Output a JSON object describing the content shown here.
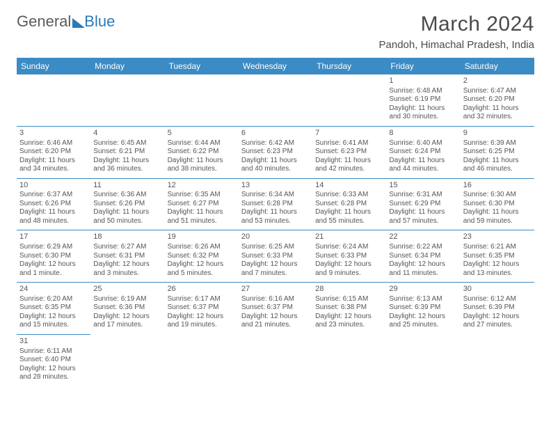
{
  "logo": {
    "general": "General",
    "blue": "Blue"
  },
  "title": "March 2024",
  "location": "Pandoh, Himachal Pradesh, India",
  "columns": [
    "Sunday",
    "Monday",
    "Tuesday",
    "Wednesday",
    "Thursday",
    "Friday",
    "Saturday"
  ],
  "styling": {
    "header_bg": "#3b8bc4",
    "header_fg": "#ffffff",
    "border_color": "#3b8bc4",
    "body_text": "#555555",
    "title_color": "#4a4a4a",
    "logo_blue": "#2a7ab8",
    "page_bg": "#ffffff",
    "month_fontsize": 30,
    "location_fontsize": 15,
    "th_fontsize": 12,
    "cell_fontsize": 10,
    "daynum_fontsize": 11
  },
  "weeks": [
    [
      null,
      null,
      null,
      null,
      null,
      {
        "n": "1",
        "sunrise": "Sunrise: 6:48 AM",
        "sunset": "Sunset: 6:19 PM",
        "day1": "Daylight: 11 hours",
        "day2": "and 30 minutes."
      },
      {
        "n": "2",
        "sunrise": "Sunrise: 6:47 AM",
        "sunset": "Sunset: 6:20 PM",
        "day1": "Daylight: 11 hours",
        "day2": "and 32 minutes."
      }
    ],
    [
      {
        "n": "3",
        "sunrise": "Sunrise: 6:46 AM",
        "sunset": "Sunset: 6:20 PM",
        "day1": "Daylight: 11 hours",
        "day2": "and 34 minutes."
      },
      {
        "n": "4",
        "sunrise": "Sunrise: 6:45 AM",
        "sunset": "Sunset: 6:21 PM",
        "day1": "Daylight: 11 hours",
        "day2": "and 36 minutes."
      },
      {
        "n": "5",
        "sunrise": "Sunrise: 6:44 AM",
        "sunset": "Sunset: 6:22 PM",
        "day1": "Daylight: 11 hours",
        "day2": "and 38 minutes."
      },
      {
        "n": "6",
        "sunrise": "Sunrise: 6:42 AM",
        "sunset": "Sunset: 6:23 PM",
        "day1": "Daylight: 11 hours",
        "day2": "and 40 minutes."
      },
      {
        "n": "7",
        "sunrise": "Sunrise: 6:41 AM",
        "sunset": "Sunset: 6:23 PM",
        "day1": "Daylight: 11 hours",
        "day2": "and 42 minutes."
      },
      {
        "n": "8",
        "sunrise": "Sunrise: 6:40 AM",
        "sunset": "Sunset: 6:24 PM",
        "day1": "Daylight: 11 hours",
        "day2": "and 44 minutes."
      },
      {
        "n": "9",
        "sunrise": "Sunrise: 6:39 AM",
        "sunset": "Sunset: 6:25 PM",
        "day1": "Daylight: 11 hours",
        "day2": "and 46 minutes."
      }
    ],
    [
      {
        "n": "10",
        "sunrise": "Sunrise: 6:37 AM",
        "sunset": "Sunset: 6:26 PM",
        "day1": "Daylight: 11 hours",
        "day2": "and 48 minutes."
      },
      {
        "n": "11",
        "sunrise": "Sunrise: 6:36 AM",
        "sunset": "Sunset: 6:26 PM",
        "day1": "Daylight: 11 hours",
        "day2": "and 50 minutes."
      },
      {
        "n": "12",
        "sunrise": "Sunrise: 6:35 AM",
        "sunset": "Sunset: 6:27 PM",
        "day1": "Daylight: 11 hours",
        "day2": "and 51 minutes."
      },
      {
        "n": "13",
        "sunrise": "Sunrise: 6:34 AM",
        "sunset": "Sunset: 6:28 PM",
        "day1": "Daylight: 11 hours",
        "day2": "and 53 minutes."
      },
      {
        "n": "14",
        "sunrise": "Sunrise: 6:33 AM",
        "sunset": "Sunset: 6:28 PM",
        "day1": "Daylight: 11 hours",
        "day2": "and 55 minutes."
      },
      {
        "n": "15",
        "sunrise": "Sunrise: 6:31 AM",
        "sunset": "Sunset: 6:29 PM",
        "day1": "Daylight: 11 hours",
        "day2": "and 57 minutes."
      },
      {
        "n": "16",
        "sunrise": "Sunrise: 6:30 AM",
        "sunset": "Sunset: 6:30 PM",
        "day1": "Daylight: 11 hours",
        "day2": "and 59 minutes."
      }
    ],
    [
      {
        "n": "17",
        "sunrise": "Sunrise: 6:29 AM",
        "sunset": "Sunset: 6:30 PM",
        "day1": "Daylight: 12 hours",
        "day2": "and 1 minute."
      },
      {
        "n": "18",
        "sunrise": "Sunrise: 6:27 AM",
        "sunset": "Sunset: 6:31 PM",
        "day1": "Daylight: 12 hours",
        "day2": "and 3 minutes."
      },
      {
        "n": "19",
        "sunrise": "Sunrise: 6:26 AM",
        "sunset": "Sunset: 6:32 PM",
        "day1": "Daylight: 12 hours",
        "day2": "and 5 minutes."
      },
      {
        "n": "20",
        "sunrise": "Sunrise: 6:25 AM",
        "sunset": "Sunset: 6:33 PM",
        "day1": "Daylight: 12 hours",
        "day2": "and 7 minutes."
      },
      {
        "n": "21",
        "sunrise": "Sunrise: 6:24 AM",
        "sunset": "Sunset: 6:33 PM",
        "day1": "Daylight: 12 hours",
        "day2": "and 9 minutes."
      },
      {
        "n": "22",
        "sunrise": "Sunrise: 6:22 AM",
        "sunset": "Sunset: 6:34 PM",
        "day1": "Daylight: 12 hours",
        "day2": "and 11 minutes."
      },
      {
        "n": "23",
        "sunrise": "Sunrise: 6:21 AM",
        "sunset": "Sunset: 6:35 PM",
        "day1": "Daylight: 12 hours",
        "day2": "and 13 minutes."
      }
    ],
    [
      {
        "n": "24",
        "sunrise": "Sunrise: 6:20 AM",
        "sunset": "Sunset: 6:35 PM",
        "day1": "Daylight: 12 hours",
        "day2": "and 15 minutes."
      },
      {
        "n": "25",
        "sunrise": "Sunrise: 6:19 AM",
        "sunset": "Sunset: 6:36 PM",
        "day1": "Daylight: 12 hours",
        "day2": "and 17 minutes."
      },
      {
        "n": "26",
        "sunrise": "Sunrise: 6:17 AM",
        "sunset": "Sunset: 6:37 PM",
        "day1": "Daylight: 12 hours",
        "day2": "and 19 minutes."
      },
      {
        "n": "27",
        "sunrise": "Sunrise: 6:16 AM",
        "sunset": "Sunset: 6:37 PM",
        "day1": "Daylight: 12 hours",
        "day2": "and 21 minutes."
      },
      {
        "n": "28",
        "sunrise": "Sunrise: 6:15 AM",
        "sunset": "Sunset: 6:38 PM",
        "day1": "Daylight: 12 hours",
        "day2": "and 23 minutes."
      },
      {
        "n": "29",
        "sunrise": "Sunrise: 6:13 AM",
        "sunset": "Sunset: 6:39 PM",
        "day1": "Daylight: 12 hours",
        "day2": "and 25 minutes."
      },
      {
        "n": "30",
        "sunrise": "Sunrise: 6:12 AM",
        "sunset": "Sunset: 6:39 PM",
        "day1": "Daylight: 12 hours",
        "day2": "and 27 minutes."
      }
    ],
    [
      {
        "n": "31",
        "sunrise": "Sunrise: 6:11 AM",
        "sunset": "Sunset: 6:40 PM",
        "day1": "Daylight: 12 hours",
        "day2": "and 28 minutes."
      },
      null,
      null,
      null,
      null,
      null,
      null
    ]
  ]
}
